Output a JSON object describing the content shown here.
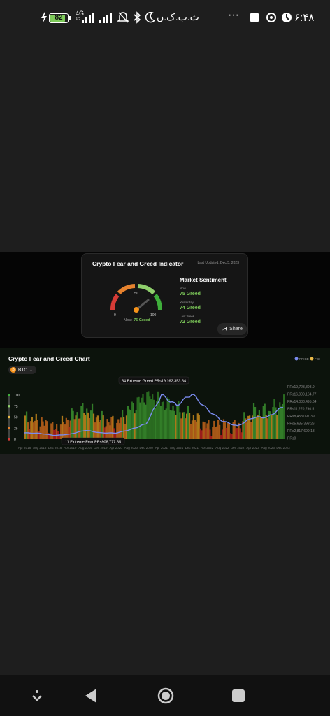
{
  "status_bar": {
    "battery": "82",
    "network": "4G",
    "network_sub": "4G",
    "carrier_text": "ث.ب.ک.ں",
    "more": "···",
    "time": "۶:۴۸"
  },
  "fgi_card": {
    "title": "Crypto Fear and Greed Indicator",
    "updated": "Last Updated: Dec 5, 2023",
    "gauge": {
      "value": 75,
      "min_label": "0",
      "mid_label": "50",
      "max_label": "100"
    },
    "now_prefix": "Now:",
    "now_value": "75 Greed",
    "market_title": "Market Sentiment",
    "now_label": "Now",
    "now_text": "75 Greed",
    "yesterday_label": "Yesterday",
    "yesterday_text": "74 Greed",
    "lastweek_label": "Last Week",
    "lastweek_text": "72 Greed",
    "share": "Share"
  },
  "fg_chart": {
    "title": "Crypto Fear and Greed Chart",
    "coin": "BTC",
    "legend": [
      "PRICE",
      "FGI"
    ],
    "tooltip_high": "84 Extreme Greed PRs19,162,353.84",
    "tooltip_low": "11 Extreme Fear PRs908,777.85",
    "fgi_ticks": [
      "100",
      "75",
      "50",
      "25",
      "0"
    ],
    "price_ticks": [
      "PRs19,723,893.9",
      "PRs16,909,164.77",
      "PRs14,088,495.64",
      "PRs11,270,796.51",
      "PRs8,453,097.39",
      "PRs5,635,398.26",
      "PRs2,817,699.13",
      "PRs0"
    ],
    "x_ticks": [
      "Apr 2018",
      "Aug 2018",
      "Dec 2018",
      "Apr 2019",
      "Aug 2019",
      "Dec 2019",
      "Apr 2020",
      "Aug 2020",
      "Dec 2020",
      "Apr 2021",
      "Aug 2021",
      "Dec 2021",
      "Apr 2022",
      "Aug 2022",
      "Dec 2022",
      "Apr 2023",
      "Aug 2023",
      "Dec 2023"
    ],
    "colors": {
      "price": "#7b8cf0",
      "fgi_legend": "#e9b949",
      "greed": "#3a8f2e",
      "extreme_greed": "#2f7a24",
      "neutral": "#c88a1c",
      "fear": "#c0631a",
      "extreme_fear": "#b31f1f"
    }
  },
  "chart_data": {
    "type": "bar",
    "x": [
      "Apr 2018",
      "Aug 2018",
      "Dec 2018",
      "Apr 2019",
      "Aug 2019",
      "Dec 2019",
      "Apr 2020",
      "Aug 2020",
      "Dec 2020",
      "Apr 2021",
      "Aug 2021",
      "Dec 2021",
      "Apr 2022",
      "Aug 2022",
      "Dec 2022",
      "Apr 2023",
      "Aug 2023",
      "Dec 2023"
    ],
    "series": [
      {
        "name": "FGI",
        "values": [
          40,
          35,
          20,
          45,
          60,
          40,
          30,
          65,
          90,
          75,
          60,
          45,
          25,
          28,
          25,
          55,
          55,
          75
        ]
      },
      {
        "name": "PRICE",
        "values": [
          1900000,
          1700000,
          900000,
          1400000,
          2900000,
          1900000,
          1800000,
          3200000,
          5400000,
          16500000,
          12500000,
          17000000,
          11000000,
          6500000,
          4500000,
          7800000,
          8000000,
          12000000
        ]
      }
    ],
    "ylim_fgi": [
      0,
      100
    ],
    "ylim_price": [
      0,
      19723893.9
    ]
  }
}
